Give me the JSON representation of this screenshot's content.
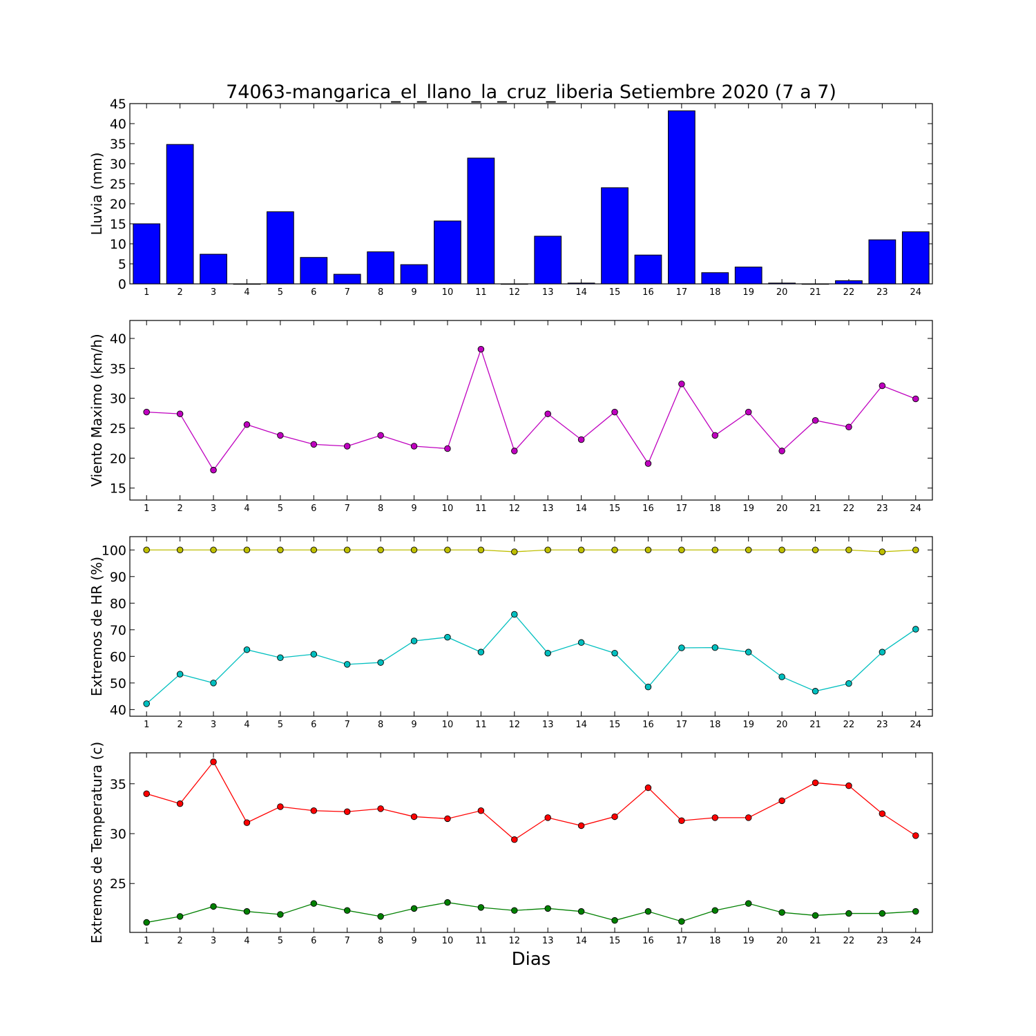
{
  "chart_data": [
    {
      "type": "bar",
      "title": "74063-mangarica_el_llano_la_cruz_liberia Setiembre 2020  (7 a 7)",
      "ylabel": "Lluvia (mm)",
      "xlabel": "",
      "categories": [
        "1",
        "2",
        "3",
        "4",
        "5",
        "6",
        "7",
        "8",
        "9",
        "10",
        "11",
        "12",
        "13",
        "14",
        "15",
        "16",
        "17",
        "18",
        "19",
        "20",
        "21",
        "22",
        "23",
        "24"
      ],
      "values": [
        15.0,
        34.8,
        7.4,
        0.0,
        18.0,
        6.6,
        2.4,
        8.0,
        4.8,
        15.7,
        31.4,
        0.0,
        11.9,
        0.2,
        24.0,
        7.2,
        43.2,
        2.8,
        4.2,
        0.2,
        0.0,
        0.8,
        11.0,
        13.0
      ],
      "ylim": [
        0,
        45
      ],
      "yticks": [
        0,
        5,
        10,
        15,
        20,
        25,
        30,
        35,
        40,
        45
      ],
      "colors": {
        "bar": "#0000ff",
        "edge": "#000000"
      }
    },
    {
      "type": "line",
      "ylabel": "Viento Maximo (km/h)",
      "xlabel": "",
      "x": [
        1,
        2,
        3,
        4,
        5,
        6,
        7,
        8,
        9,
        10,
        11,
        12,
        13,
        14,
        15,
        16,
        17,
        18,
        19,
        20,
        21,
        22,
        23,
        24
      ],
      "series": [
        {
          "values": [
            27.7,
            27.4,
            18.0,
            25.6,
            23.8,
            22.3,
            22.0,
            23.8,
            22.0,
            21.6,
            38.2,
            21.2,
            27.4,
            23.1,
            27.7,
            19.1,
            32.4,
            23.8,
            27.7,
            21.2,
            26.3,
            25.2,
            32.1,
            29.9
          ],
          "color": "#bf00bf"
        }
      ],
      "ylim": [
        13,
        43
      ],
      "yticks": [
        15,
        20,
        25,
        30,
        35,
        40
      ]
    },
    {
      "type": "line",
      "ylabel": "Extremos de HR (%)",
      "xlabel": "",
      "x": [
        1,
        2,
        3,
        4,
        5,
        6,
        7,
        8,
        9,
        10,
        11,
        12,
        13,
        14,
        15,
        16,
        17,
        18,
        19,
        20,
        21,
        22,
        23,
        24
      ],
      "series": [
        {
          "values": [
            100,
            100,
            100,
            100,
            100,
            100,
            100,
            100,
            100,
            100,
            100,
            99.3,
            100,
            100,
            100,
            100,
            100,
            100,
            100,
            100,
            100,
            100,
            99.3,
            100
          ],
          "color": "#bfbf00"
        },
        {
          "values": [
            42.2,
            53.3,
            50.0,
            62.5,
            59.5,
            60.8,
            57.0,
            57.7,
            65.8,
            67.2,
            61.6,
            75.8,
            61.2,
            65.2,
            61.2,
            48.5,
            63.2,
            63.3,
            61.6,
            52.3,
            46.9,
            49.8,
            61.6,
            70.2
          ],
          "color": "#00bfbf"
        }
      ],
      "ylim": [
        37.5,
        105
      ],
      "yticks": [
        40,
        50,
        60,
        70,
        80,
        90,
        100
      ]
    },
    {
      "type": "line",
      "ylabel": "Extremos de Temperatura (c)",
      "xlabel": "Dias",
      "x": [
        1,
        2,
        3,
        4,
        5,
        6,
        7,
        8,
        9,
        10,
        11,
        12,
        13,
        14,
        15,
        16,
        17,
        18,
        19,
        20,
        21,
        22,
        23,
        24
      ],
      "series": [
        {
          "values": [
            34.0,
            33.0,
            37.2,
            31.1,
            32.7,
            32.3,
            32.2,
            32.5,
            31.7,
            31.5,
            32.3,
            29.4,
            31.6,
            30.8,
            31.7,
            34.6,
            31.3,
            31.6,
            31.6,
            33.3,
            35.1,
            34.8,
            32.0,
            29.8
          ],
          "color": "#ff0000"
        },
        {
          "values": [
            21.1,
            21.7,
            22.7,
            22.2,
            21.9,
            23.0,
            22.3,
            21.7,
            22.5,
            23.1,
            22.6,
            22.3,
            22.5,
            22.2,
            21.3,
            22.2,
            21.2,
            22.3,
            23.0,
            22.1,
            21.8,
            22.0,
            22.0,
            22.2
          ],
          "color": "#008000"
        }
      ],
      "ylim": [
        20.1,
        38.1
      ],
      "yticks": [
        25,
        30,
        35
      ]
    }
  ]
}
